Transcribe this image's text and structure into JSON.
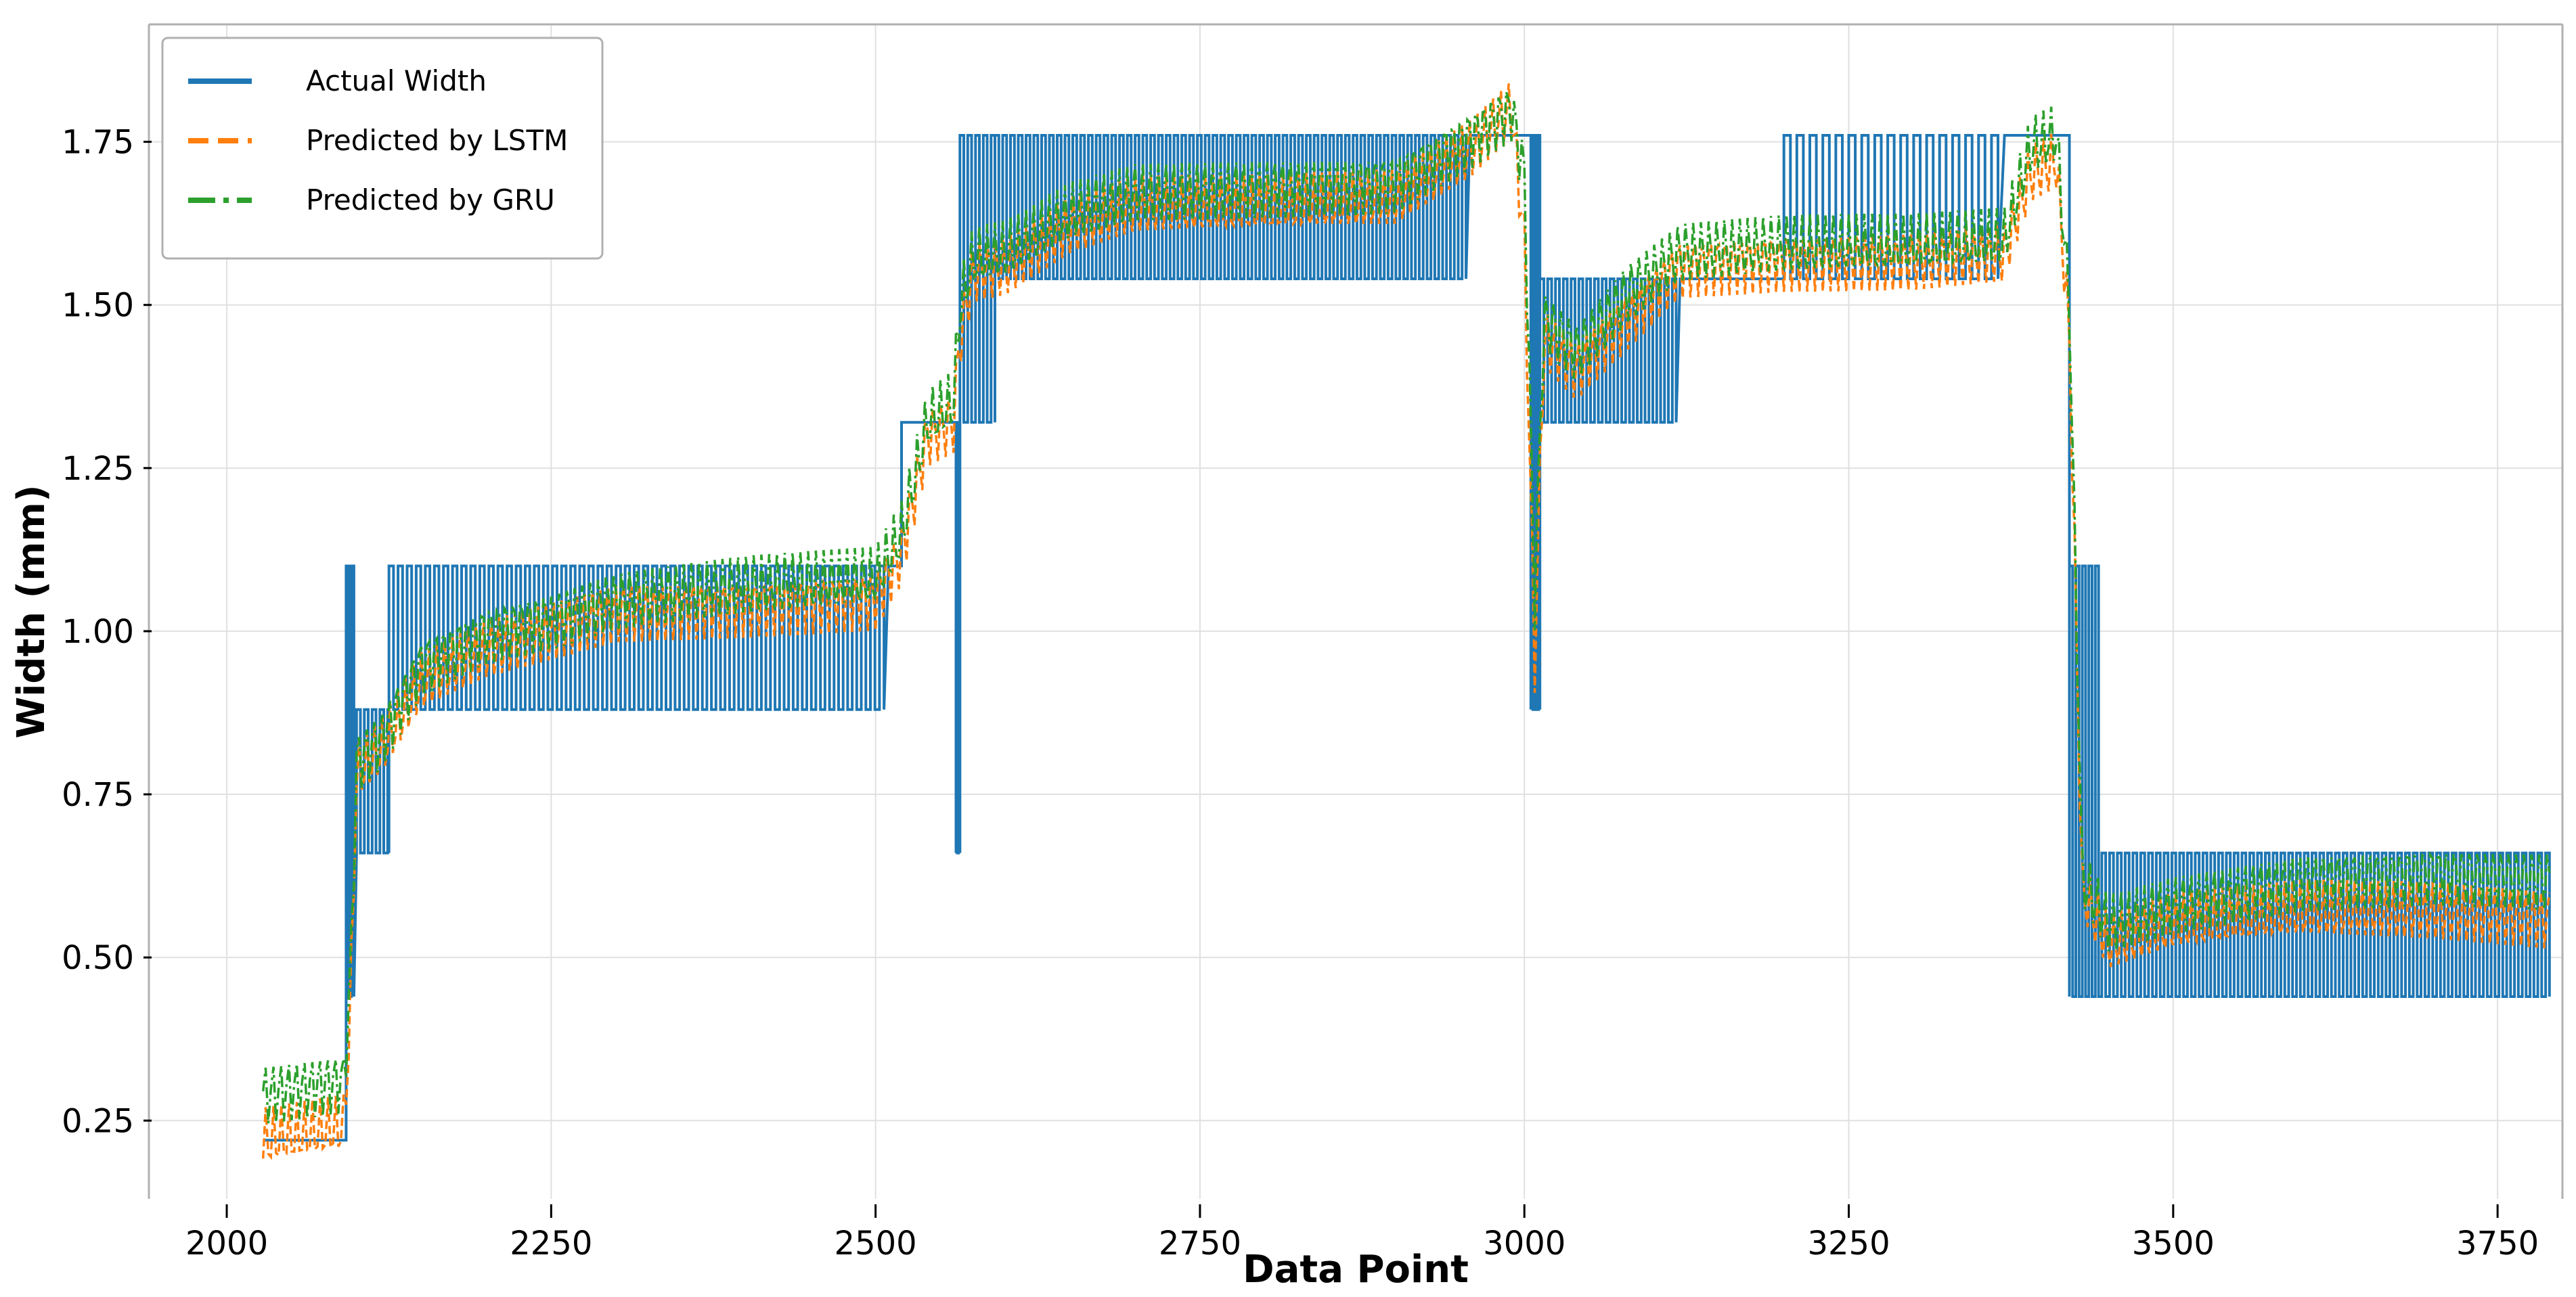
{
  "chart_data": {
    "type": "line",
    "title": "",
    "xlabel": "Data Point",
    "ylabel": "Width (mm)",
    "xlim": [
      1940,
      3800
    ],
    "ylim": [
      0.13,
      1.93
    ],
    "x_ticks": [
      2000,
      2250,
      2500,
      2750,
      3000,
      3250,
      3500,
      3750
    ],
    "x_tick_labels": [
      "2000",
      "2250",
      "2500",
      "2750",
      "3000",
      "3250",
      "3500",
      "3750"
    ],
    "y_ticks": [
      0.25,
      0.5,
      0.75,
      1.0,
      1.25,
      1.5,
      1.75
    ],
    "y_tick_labels": [
      "0.25",
      "0.50",
      "0.75",
      "1.00",
      "1.25",
      "1.50",
      "1.75"
    ],
    "grid": true,
    "legend_position": "top-left",
    "legend": [
      "Actual Width",
      "Predicted by LSTM",
      "Predicted by GRU"
    ],
    "series": [
      {
        "name": "Actual Width",
        "color": "#1f77b4",
        "style": "solid",
        "segments": [
          {
            "x_start": 2028,
            "x_end": 2092,
            "base": 0.22,
            "peak": 0.22,
            "period": 0
          },
          {
            "x_start": 2092,
            "x_end": 2100,
            "base": 0.44,
            "peak": 1.1,
            "period": 4
          },
          {
            "x_start": 2100,
            "x_end": 2125,
            "base": 0.66,
            "peak": 0.88,
            "period": 6
          },
          {
            "x_start": 2125,
            "x_end": 2510,
            "base": 0.88,
            "peak": 1.1,
            "period": 7
          },
          {
            "x_start": 2510,
            "x_end": 2520,
            "base": 1.1,
            "peak": 1.1,
            "period": 0
          },
          {
            "x_start": 2520,
            "x_end": 2562,
            "base": 1.32,
            "peak": 1.32,
            "period": 0
          },
          {
            "x_start": 2562,
            "x_end": 2565,
            "base": 0.66,
            "peak": 1.32,
            "period": 2
          },
          {
            "x_start": 2565,
            "x_end": 2592,
            "base": 1.32,
            "peak": 1.76,
            "period": 6
          },
          {
            "x_start": 2592,
            "x_end": 2958,
            "base": 1.54,
            "peak": 1.76,
            "period": 6
          },
          {
            "x_start": 2958,
            "x_end": 3005,
            "base": 1.76,
            "peak": 1.76,
            "period": 0
          },
          {
            "x_start": 3005,
            "x_end": 3012,
            "base": 0.88,
            "peak": 1.76,
            "period": 3
          },
          {
            "x_start": 3012,
            "x_end": 3120,
            "base": 1.32,
            "peak": 1.54,
            "period": 6
          },
          {
            "x_start": 3120,
            "x_end": 3200,
            "base": 1.54,
            "peak": 1.54,
            "period": 0
          },
          {
            "x_start": 3200,
            "x_end": 3370,
            "base": 1.54,
            "peak": 1.76,
            "period": 10
          },
          {
            "x_start": 3370,
            "x_end": 3420,
            "base": 1.76,
            "peak": 1.76,
            "period": 0
          },
          {
            "x_start": 3420,
            "x_end": 3445,
            "base": 0.44,
            "peak": 1.1,
            "period": 5
          },
          {
            "x_start": 3445,
            "x_end": 3790,
            "base": 0.44,
            "peak": 0.66,
            "period": 6
          }
        ]
      },
      {
        "name": "Predicted by LSTM",
        "color": "#ff7f0e",
        "style": "dashed",
        "trend": [
          [
            2028,
            0.22
          ],
          [
            2090,
            0.24
          ],
          [
            2095,
            0.4
          ],
          [
            2100,
            0.78
          ],
          [
            2120,
            0.82
          ],
          [
            2150,
            0.92
          ],
          [
            2200,
            0.97
          ],
          [
            2250,
            1.0
          ],
          [
            2300,
            1.03
          ],
          [
            2400,
            1.04
          ],
          [
            2500,
            1.05
          ],
          [
            2520,
            1.12
          ],
          [
            2540,
            1.3
          ],
          [
            2560,
            1.32
          ],
          [
            2565,
            1.45
          ],
          [
            2575,
            1.55
          ],
          [
            2600,
            1.56
          ],
          [
            2650,
            1.62
          ],
          [
            2700,
            1.65
          ],
          [
            2800,
            1.65
          ],
          [
            2900,
            1.66
          ],
          [
            2960,
            1.74
          ],
          [
            2990,
            1.8
          ],
          [
            3000,
            1.6
          ],
          [
            3008,
            0.95
          ],
          [
            3015,
            1.45
          ],
          [
            3040,
            1.4
          ],
          [
            3080,
            1.48
          ],
          [
            3120,
            1.56
          ],
          [
            3200,
            1.57
          ],
          [
            3300,
            1.57
          ],
          [
            3370,
            1.58
          ],
          [
            3390,
            1.7
          ],
          [
            3410,
            1.72
          ],
          [
            3420,
            1.45
          ],
          [
            3430,
            0.6
          ],
          [
            3450,
            0.52
          ],
          [
            3500,
            0.55
          ],
          [
            3550,
            0.56
          ],
          [
            3600,
            0.57
          ],
          [
            3700,
            0.57
          ],
          [
            3790,
            0.56
          ]
        ],
        "amplitude": 0.05
      },
      {
        "name": "Predicted by GRU",
        "color": "#2ca02c",
        "style": "dash-dot",
        "trend": [
          [
            2028,
            0.29
          ],
          [
            2090,
            0.31
          ],
          [
            2095,
            0.45
          ],
          [
            2100,
            0.8
          ],
          [
            2120,
            0.84
          ],
          [
            2150,
            0.95
          ],
          [
            2200,
            1.0
          ],
          [
            2250,
            1.02
          ],
          [
            2300,
            1.05
          ],
          [
            2400,
            1.07
          ],
          [
            2500,
            1.08
          ],
          [
            2520,
            1.15
          ],
          [
            2540,
            1.32
          ],
          [
            2560,
            1.35
          ],
          [
            2565,
            1.5
          ],
          [
            2575,
            1.57
          ],
          [
            2600,
            1.58
          ],
          [
            2650,
            1.64
          ],
          [
            2700,
            1.67
          ],
          [
            2800,
            1.68
          ],
          [
            2900,
            1.69
          ],
          [
            2960,
            1.76
          ],
          [
            2990,
            1.8
          ],
          [
            3000,
            1.7
          ],
          [
            3008,
            1.05
          ],
          [
            3015,
            1.48
          ],
          [
            3040,
            1.43
          ],
          [
            3080,
            1.52
          ],
          [
            3120,
            1.58
          ],
          [
            3200,
            1.59
          ],
          [
            3300,
            1.59
          ],
          [
            3370,
            1.6
          ],
          [
            3390,
            1.74
          ],
          [
            3410,
            1.76
          ],
          [
            3420,
            1.5
          ],
          [
            3430,
            0.62
          ],
          [
            3450,
            0.55
          ],
          [
            3500,
            0.58
          ],
          [
            3550,
            0.6
          ],
          [
            3600,
            0.62
          ],
          [
            3700,
            0.63
          ],
          [
            3790,
            0.62
          ]
        ],
        "amplitude": 0.05
      }
    ]
  }
}
